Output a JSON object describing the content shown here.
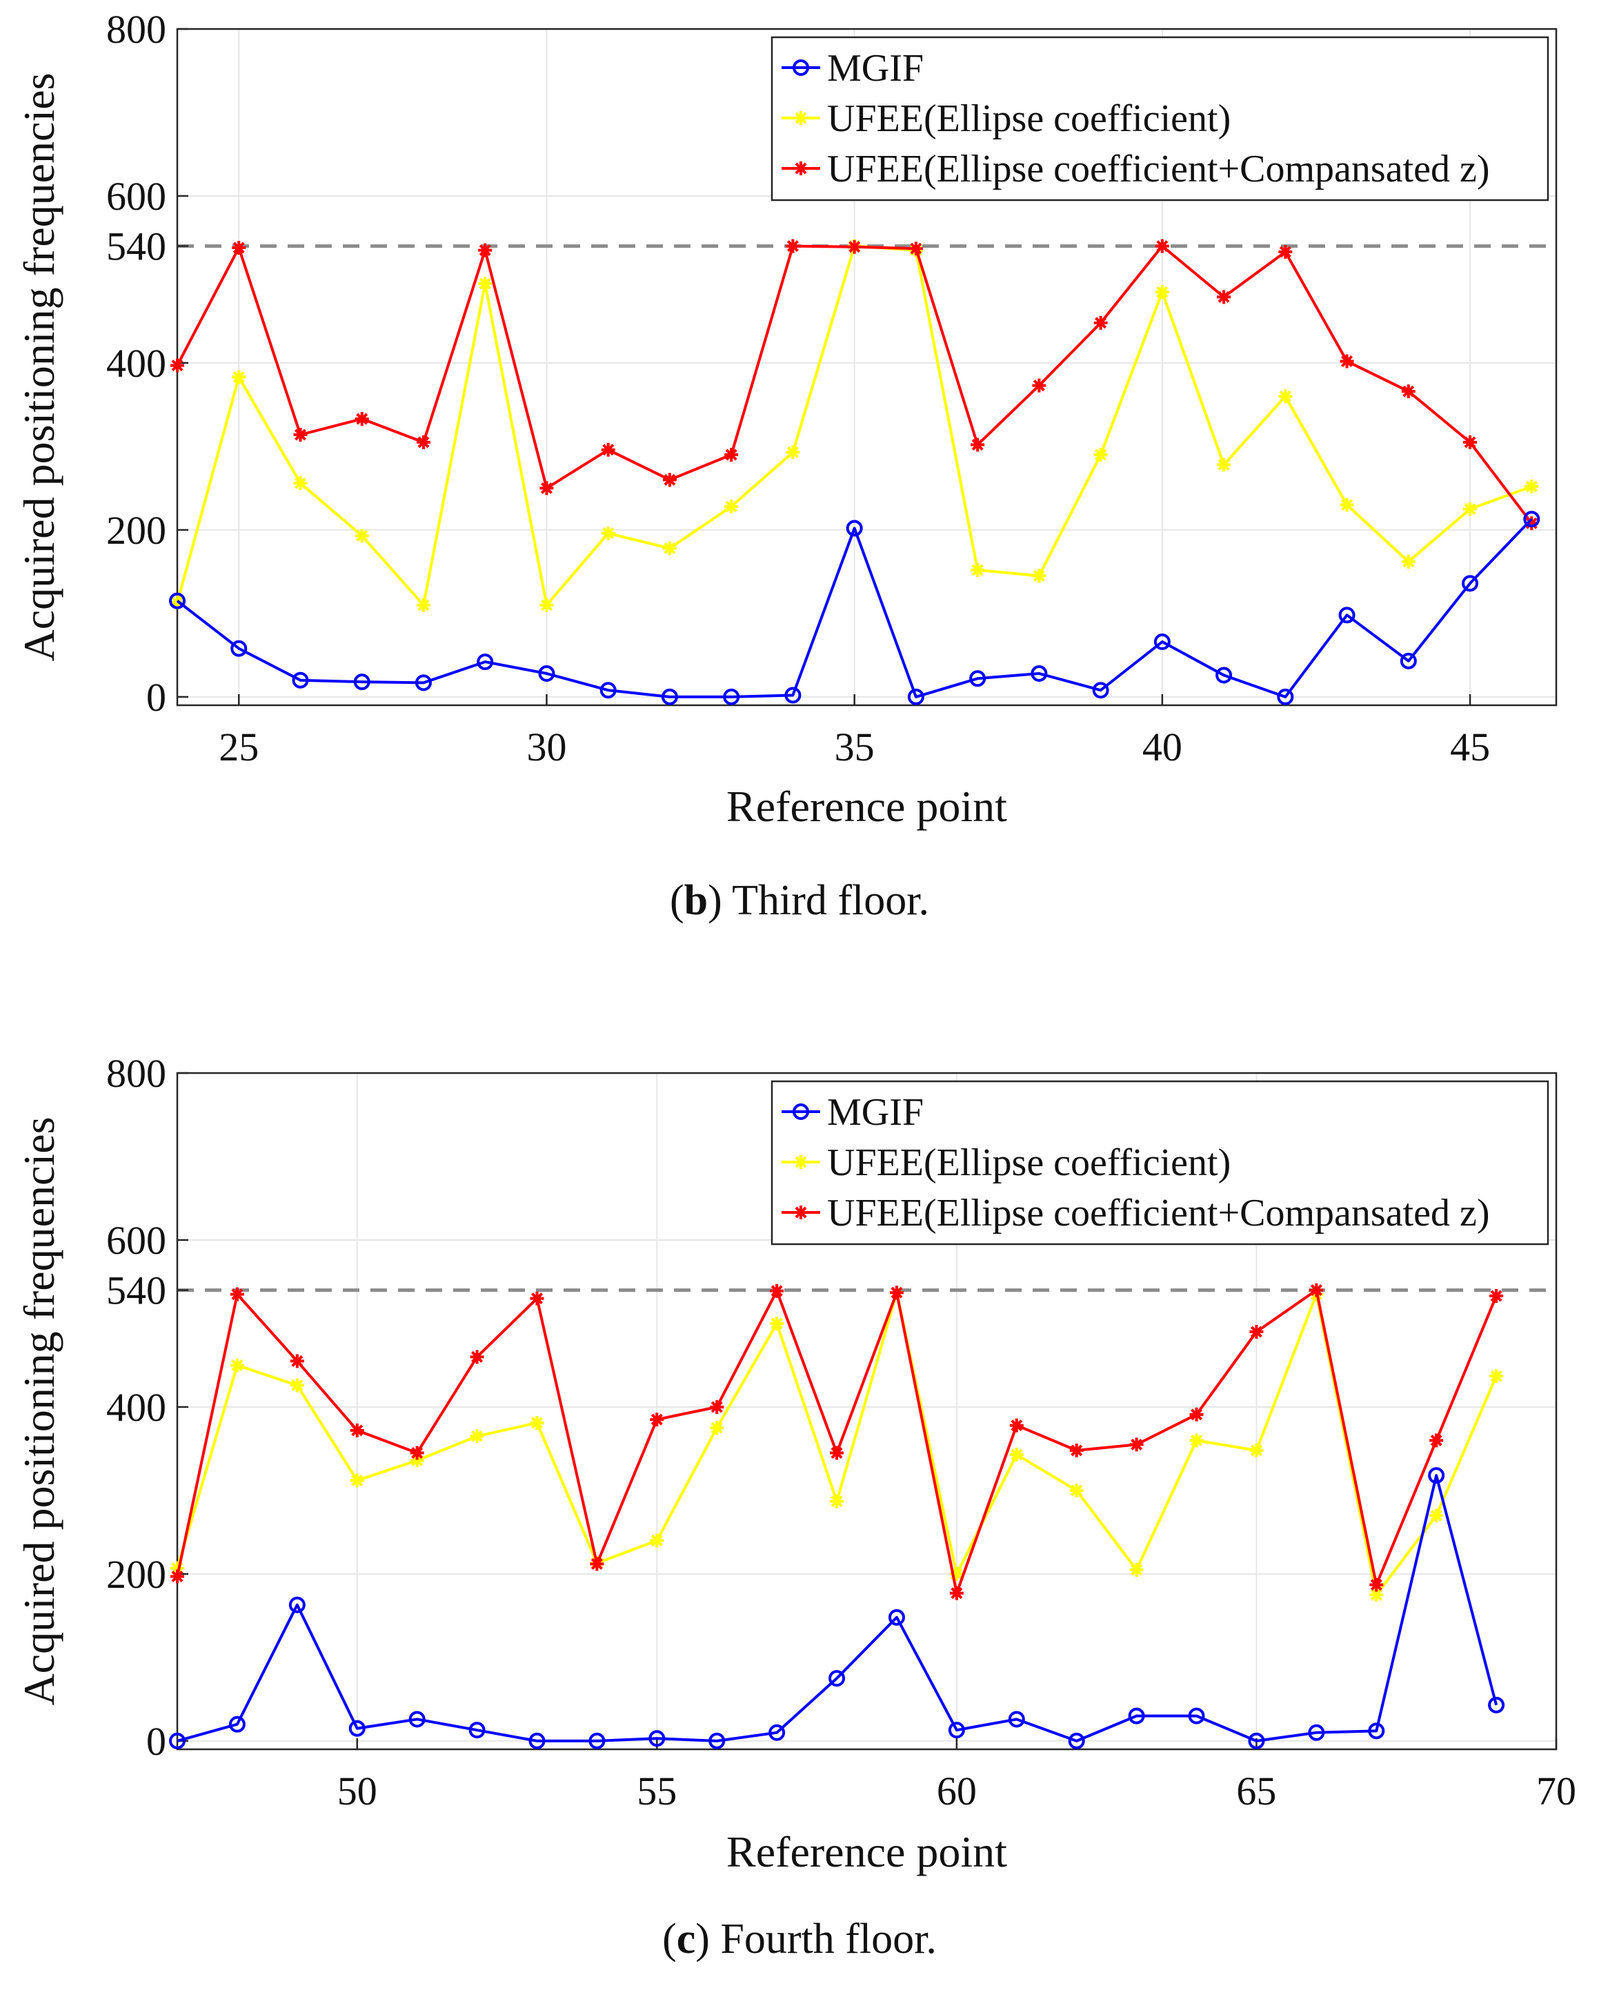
{
  "chart_data": [
    {
      "type": "line",
      "panel_letter": "b",
      "caption": ") Third floor.",
      "xlabel": "Reference point",
      "ylabel": "Acquired positioning frequencies",
      "xlim": [
        24,
        46.4
      ],
      "ylim": [
        -10,
        800
      ],
      "xticks": [
        25,
        30,
        35,
        40,
        45
      ],
      "yticks": [
        0,
        200,
        400,
        540,
        600,
        800
      ],
      "reference_line": 540,
      "grid": true,
      "legend_position": "top-right",
      "x": [
        24,
        25,
        26,
        27,
        28,
        29,
        30,
        31,
        32,
        33,
        34,
        35,
        36,
        37,
        38,
        39,
        40,
        41,
        42,
        43,
        44,
        45,
        46
      ],
      "series": [
        {
          "name": "MGIF",
          "color": "#0000ff",
          "marker": "circle",
          "values": [
            115,
            58,
            20,
            18,
            17,
            42,
            28,
            8,
            0,
            0,
            2,
            202,
            0,
            22,
            28,
            8,
            66,
            26,
            0,
            98,
            43,
            136,
            213
          ]
        },
        {
          "name": "UFEE(Ellipse coefficient)",
          "color": "#ffff00",
          "marker": "star",
          "values": [
            113,
            383,
            256,
            193,
            110,
            495,
            110,
            196,
            178,
            228,
            293,
            540,
            535,
            152,
            145,
            290,
            485,
            278,
            360,
            230,
            162,
            225,
            252
          ]
        },
        {
          "name": "UFEE(Ellipse coefficient+Compansated z)",
          "color": "#ff0000",
          "marker": "star",
          "values": [
            397,
            538,
            314,
            333,
            305,
            535,
            250,
            296,
            260,
            290,
            540,
            539,
            537,
            302,
            373,
            448,
            540,
            479,
            533,
            402,
            366,
            305,
            208
          ]
        }
      ]
    },
    {
      "type": "line",
      "panel_letter": "c",
      "caption": ") Fourth floor.",
      "xlabel": "Reference point",
      "ylabel": "Acquired positioning frequencies",
      "xlim": [
        47,
        70
      ],
      "ylim": [
        -10,
        800
      ],
      "xticks": [
        50,
        55,
        60,
        65,
        70
      ],
      "yticks": [
        0,
        200,
        400,
        540,
        600,
        800
      ],
      "reference_line": 540,
      "grid": true,
      "legend_position": "top-right",
      "x": [
        47,
        48,
        49,
        50,
        51,
        52,
        53,
        54,
        55,
        56,
        57,
        58,
        59,
        60,
        61,
        62,
        63,
        64,
        65,
        66,
        67,
        68,
        69
      ],
      "series": [
        {
          "name": "MGIF",
          "color": "#0000ff",
          "marker": "circle",
          "values": [
            0,
            20,
            163,
            15,
            26,
            13,
            0,
            0,
            3,
            0,
            10,
            75,
            148,
            13,
            26,
            0,
            30,
            30,
            0,
            10,
            12,
            318,
            43
          ]
        },
        {
          "name": "UFEE(Ellipse coefficient)",
          "color": "#ffff00",
          "marker": "star",
          "values": [
            207,
            450,
            426,
            312,
            336,
            365,
            381,
            213,
            240,
            375,
            500,
            287,
            537,
            200,
            343,
            300,
            205,
            360,
            348,
            535,
            175,
            270,
            437
          ]
        },
        {
          "name": "UFEE(Ellipse coefficient+Compansated z)",
          "color": "#ff0000",
          "marker": "star",
          "values": [
            197,
            535,
            455,
            372,
            345,
            460,
            530,
            212,
            385,
            400,
            539,
            345,
            537,
            177,
            378,
            348,
            355,
            391,
            490,
            540,
            187,
            360,
            533
          ]
        }
      ]
    }
  ]
}
